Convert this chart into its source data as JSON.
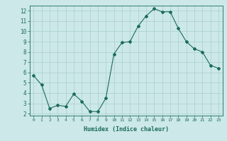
{
  "x": [
    0,
    1,
    2,
    3,
    4,
    5,
    6,
    7,
    8,
    9,
    10,
    11,
    12,
    13,
    14,
    15,
    16,
    17,
    18,
    19,
    20,
    21,
    22,
    23
  ],
  "y": [
    5.7,
    4.8,
    2.5,
    2.8,
    2.7,
    3.9,
    3.2,
    2.2,
    2.2,
    3.5,
    7.8,
    8.9,
    9.0,
    10.5,
    11.5,
    12.2,
    11.9,
    11.9,
    10.3,
    9.0,
    8.3,
    8.0,
    6.7,
    6.4
  ],
  "xlabel": "Humidex (Indice chaleur)",
  "bg_color": "#cce8e8",
  "line_color": "#1a6b5a",
  "grid_color": "#aacfcf",
  "tick_color": "#1a6b5a",
  "axis_bg": "#cce8e8",
  "xlim": [
    -0.5,
    23.5
  ],
  "ylim": [
    1.8,
    12.5
  ],
  "yticks": [
    2,
    3,
    4,
    5,
    6,
    7,
    8,
    9,
    10,
    11,
    12
  ],
  "xticks": [
    0,
    1,
    2,
    3,
    4,
    5,
    6,
    7,
    8,
    9,
    10,
    11,
    12,
    13,
    14,
    15,
    16,
    17,
    18,
    19,
    20,
    21,
    22,
    23
  ]
}
